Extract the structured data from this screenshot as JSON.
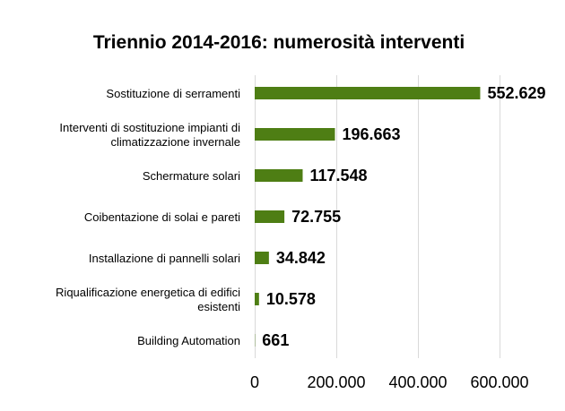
{
  "chart_data": {
    "type": "bar",
    "orientation": "horizontal",
    "title": "Triennio 2014-2016: numerosità interventi",
    "categories": [
      [
        "Sostituzione di serramenti"
      ],
      [
        "Interventi di sostituzione impianti di",
        "climatizzazione invernale"
      ],
      [
        "Schermature solari"
      ],
      [
        "Coibentazione di solai e pareti"
      ],
      [
        "Installazione di pannelli solari"
      ],
      [
        "Riqualificazione energetica di edifici",
        "esistenti"
      ],
      [
        "Building Automation"
      ]
    ],
    "values": [
      552629,
      196663,
      117548,
      72755,
      34842,
      10578,
      661
    ],
    "value_labels": [
      "552.629",
      "196.663",
      "117.548",
      "72.755",
      "34.842",
      "10.578",
      "661"
    ],
    "xlim": [
      0,
      600000
    ],
    "ticks": [
      0,
      200000,
      400000,
      600000
    ],
    "tick_labels": [
      "0",
      "200.000",
      "400.000",
      "600.000"
    ],
    "grid": true,
    "bar_color": "#4e7e14",
    "grid_color": "#d9d9d9"
  }
}
